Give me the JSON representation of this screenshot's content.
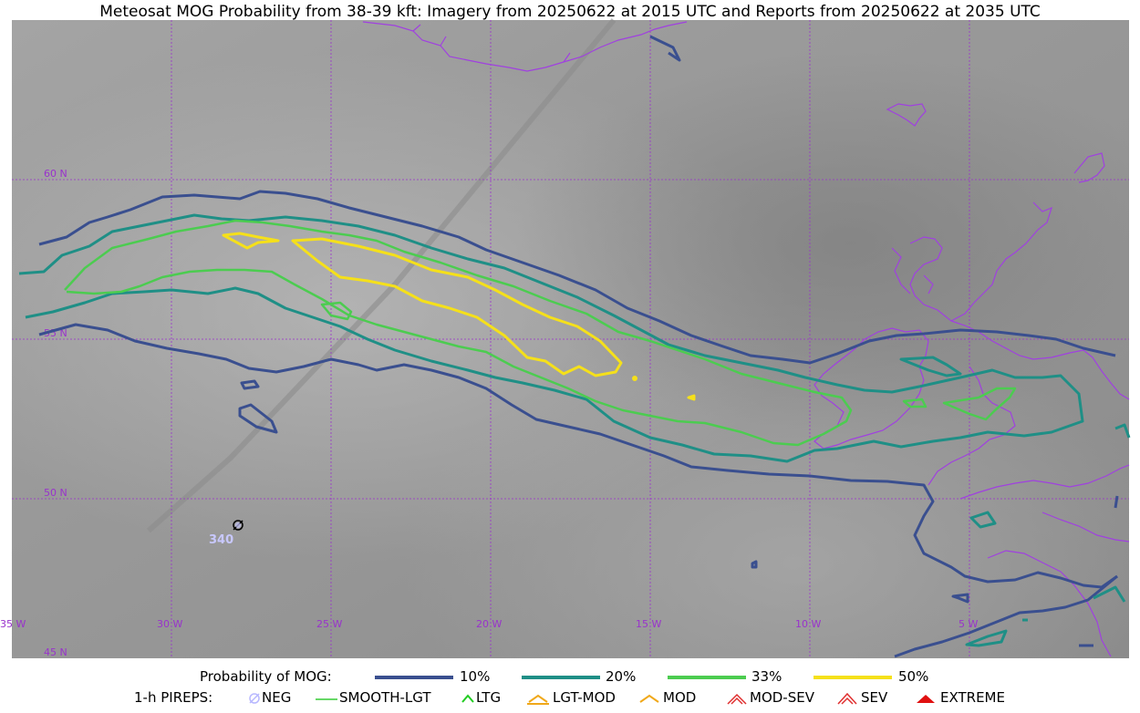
{
  "title": "Meteosat MOG Probability from 38-39 kft: Imagery from 20250622 at 2015 UTC and Reports from 20250622 at 2035 UTC",
  "map": {
    "lat_labels": [
      "60 N",
      "55 N",
      "50 N",
      "45 N"
    ],
    "lon_labels": [
      "35 W",
      "30 W",
      "25 W",
      "20 W",
      "15 W",
      "10 W",
      "5 W"
    ],
    "report": {
      "symbol": "neg-icon",
      "value": "340"
    },
    "colors": {
      "p10": "#3a4f8f",
      "p20": "#1f8f86",
      "p33": "#4ccc50",
      "p50": "#f5e01a",
      "coast": "#a040e0",
      "grid": "#9932cc"
    }
  },
  "legend": {
    "prob_title": "Probability of MOG:",
    "prob_items": [
      {
        "label": "10%",
        "color": "#3a4f8f"
      },
      {
        "label": "20%",
        "color": "#1f8f86"
      },
      {
        "label": "33%",
        "color": "#4ccc50"
      },
      {
        "label": "50%",
        "color": "#f5e01a"
      }
    ],
    "pirep_title": "1-h PIREPS:",
    "pirep_items": [
      {
        "label": "NEG",
        "icon": "neg-icon",
        "color": "#b8b8ff"
      },
      {
        "label": "SMOOTH-LGT",
        "icon": "smooth-lgt-icon",
        "color": "#33cc33"
      },
      {
        "label": "LTG",
        "icon": "ltg-icon",
        "color": "#22cc22"
      },
      {
        "label": "LGT-MOD",
        "icon": "lgt-mod-icon",
        "color": "#f0a81a"
      },
      {
        "label": "MOD",
        "icon": "mod-icon",
        "color": "#f0a81a"
      },
      {
        "label": "MOD-SEV",
        "icon": "mod-sev-icon",
        "color": "#e03030"
      },
      {
        "label": "SEV",
        "icon": "sev-icon",
        "color": "#e03030"
      },
      {
        "label": "EXTREME",
        "icon": "extreme-icon",
        "color": "#e01010"
      }
    ]
  }
}
